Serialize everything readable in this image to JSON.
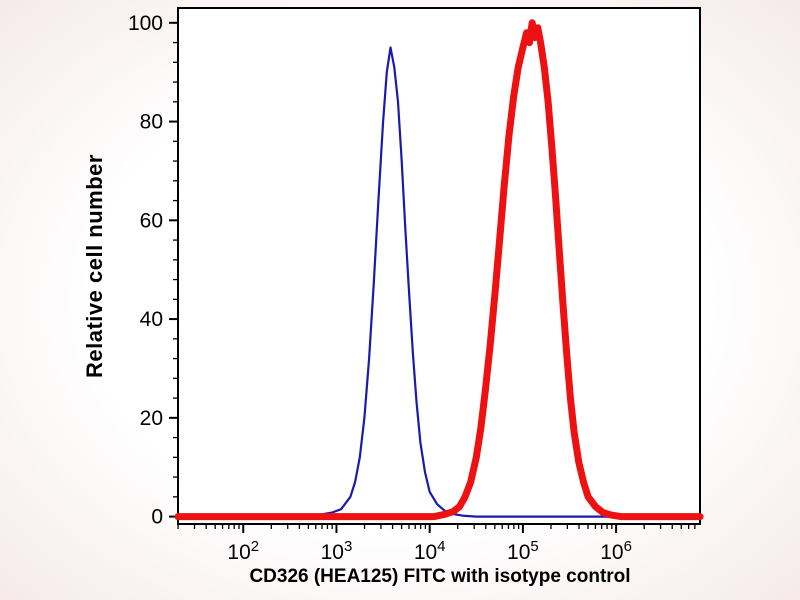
{
  "page": {
    "background_tint": "#f5eae9",
    "plot_background": "#ffffff"
  },
  "chart_data": {
    "type": "line",
    "subtype": "flow-cytometry-histogram",
    "title": "",
    "xlabel": "CD326 (HEA125) FITC with isotype control",
    "ylabel": "Relative cell number",
    "x_scale": "log10",
    "xlim_log10": [
      1.3,
      6.9
    ],
    "ylim": [
      -1.5,
      103
    ],
    "yticks": [
      0,
      20,
      40,
      60,
      80,
      100
    ],
    "y_minor_step": 4,
    "xticks_log10": [
      2,
      3,
      4,
      5,
      6
    ],
    "xtick_base": "10",
    "grid": false,
    "legend_position": "none",
    "frame": true,
    "axis_color": "#000000",
    "series": [
      {
        "name": "isotype-control",
        "label": "isotype control",
        "color": "#1a1aad",
        "width": 2.2,
        "points": [
          [
            1.3,
            0
          ],
          [
            2.6,
            0
          ],
          [
            2.8,
            0.3
          ],
          [
            2.95,
            0.8
          ],
          [
            3.05,
            1.5
          ],
          [
            3.15,
            4
          ],
          [
            3.2,
            7
          ],
          [
            3.25,
            12
          ],
          [
            3.3,
            20
          ],
          [
            3.35,
            32
          ],
          [
            3.4,
            47
          ],
          [
            3.45,
            64
          ],
          [
            3.5,
            80
          ],
          [
            3.54,
            90
          ],
          [
            3.58,
            95
          ],
          [
            3.62,
            91
          ],
          [
            3.66,
            84
          ],
          [
            3.7,
            72
          ],
          [
            3.74,
            58
          ],
          [
            3.78,
            45
          ],
          [
            3.82,
            33
          ],
          [
            3.86,
            23
          ],
          [
            3.9,
            15
          ],
          [
            3.95,
            9
          ],
          [
            4.0,
            5
          ],
          [
            4.08,
            2.5
          ],
          [
            4.16,
            1.2
          ],
          [
            4.25,
            0.5
          ],
          [
            4.35,
            0.2
          ],
          [
            4.5,
            0
          ],
          [
            6.9,
            0
          ]
        ]
      },
      {
        "name": "cd326-hea125-fitc",
        "label": "CD326 (HEA125) FITC",
        "color": "#ee1111",
        "width": 7,
        "points": [
          [
            1.3,
            0
          ],
          [
            4.05,
            0
          ],
          [
            4.15,
            0.4
          ],
          [
            4.25,
            1
          ],
          [
            4.32,
            2
          ],
          [
            4.38,
            4
          ],
          [
            4.44,
            7
          ],
          [
            4.5,
            12
          ],
          [
            4.55,
            18
          ],
          [
            4.6,
            26
          ],
          [
            4.65,
            35
          ],
          [
            4.7,
            45
          ],
          [
            4.75,
            56
          ],
          [
            4.8,
            67
          ],
          [
            4.85,
            77
          ],
          [
            4.9,
            85
          ],
          [
            4.95,
            91
          ],
          [
            5.0,
            95
          ],
          [
            5.04,
            98
          ],
          [
            5.07,
            96
          ],
          [
            5.1,
            100
          ],
          [
            5.13,
            97
          ],
          [
            5.16,
            99
          ],
          [
            5.19,
            96
          ],
          [
            5.23,
            91
          ],
          [
            5.27,
            84
          ],
          [
            5.31,
            75
          ],
          [
            5.35,
            65
          ],
          [
            5.39,
            54
          ],
          [
            5.43,
            43
          ],
          [
            5.47,
            33
          ],
          [
            5.51,
            24
          ],
          [
            5.55,
            17
          ],
          [
            5.6,
            11
          ],
          [
            5.65,
            7
          ],
          [
            5.7,
            4
          ],
          [
            5.78,
            2
          ],
          [
            5.86,
            0.8
          ],
          [
            5.95,
            0.3
          ],
          [
            6.05,
            0
          ],
          [
            6.9,
            0
          ]
        ]
      }
    ]
  }
}
